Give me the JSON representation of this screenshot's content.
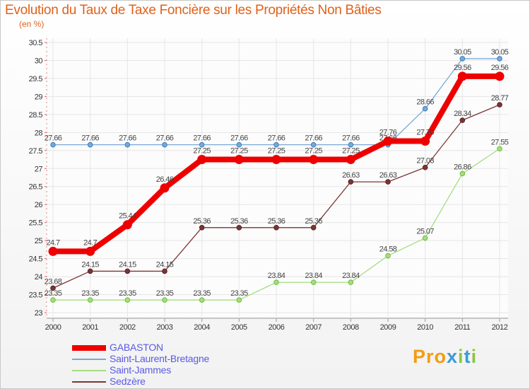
{
  "chart_data": {
    "type": "line",
    "title": "Evolution du Taux de Taxe Foncière sur les Propriétés Non Bâties",
    "ylabel": "(en %)",
    "xlabel": "",
    "categories": [
      "2000",
      "2001",
      "2002",
      "2003",
      "2004",
      "2005",
      "2006",
      "2007",
      "2008",
      "2009",
      "2010",
      "2011",
      "2012"
    ],
    "ylim": [
      23,
      30.5
    ],
    "yticks": [
      "23",
      "23.5",
      "24",
      "24.5",
      "25",
      "25.5",
      "26",
      "26.5",
      "27",
      "27.5",
      "28",
      "28.5",
      "29",
      "29.5",
      "30",
      "30.5"
    ],
    "legend_position": "bottom-left",
    "series": [
      {
        "name": "GABASTON",
        "color": "#ee0000",
        "values": [
          24.7,
          24.7,
          25.44,
          26.46,
          27.25,
          27.25,
          27.25,
          27.25,
          27.25,
          27.76,
          27.76,
          29.56,
          29.56
        ],
        "labels": [
          "24.7",
          "24.7",
          "25.44",
          "26.46",
          "27.25",
          "27.25",
          "27.25",
          "27.25",
          "27.25",
          "27.76",
          "27.76",
          "29.56",
          "29.56"
        ]
      },
      {
        "name": "Saint-Laurent-Bretagne",
        "color": "#78a8d6",
        "values": [
          27.66,
          27.66,
          27.66,
          27.66,
          27.66,
          27.66,
          27.66,
          27.66,
          27.66,
          27.66,
          28.66,
          30.05,
          30.05
        ],
        "labels": [
          "27.66",
          "27.66",
          "27.66",
          "27.66",
          "27.66",
          "27.66",
          "27.66",
          "27.66",
          "27.66",
          "27.66",
          "28.66",
          "30.05",
          "30.05"
        ]
      },
      {
        "name": "Saint-Jammes",
        "color": "#a6dc80",
        "values": [
          23.35,
          23.35,
          23.35,
          23.35,
          23.35,
          23.35,
          23.84,
          23.84,
          23.84,
          24.58,
          25.07,
          26.86,
          27.55
        ],
        "labels": [
          "23.35",
          "23.35",
          "23.35",
          "23.35",
          "23.35",
          "23.35",
          "23.84",
          "23.84",
          "23.84",
          "24.58",
          "25.07",
          "26.86",
          "27.55"
        ]
      },
      {
        "name": "Sedzère",
        "color": "#7b3535",
        "values": [
          23.68,
          24.15,
          24.15,
          24.15,
          25.36,
          25.36,
          25.36,
          25.36,
          26.63,
          26.63,
          27.03,
          28.34,
          28.77
        ],
        "labels": [
          "23.68",
          "24.15",
          "24.15",
          "24.15",
          "25.36",
          "25.36",
          "25.36",
          "25.36",
          "26.63",
          "26.63",
          "27.03",
          "28.34",
          "28.77"
        ]
      }
    ]
  },
  "branding": {
    "logo_prefix": "Pro",
    "logo_x": "x",
    "logo_i1": "i",
    "logo_t": "t",
    "logo_i2": "i"
  }
}
